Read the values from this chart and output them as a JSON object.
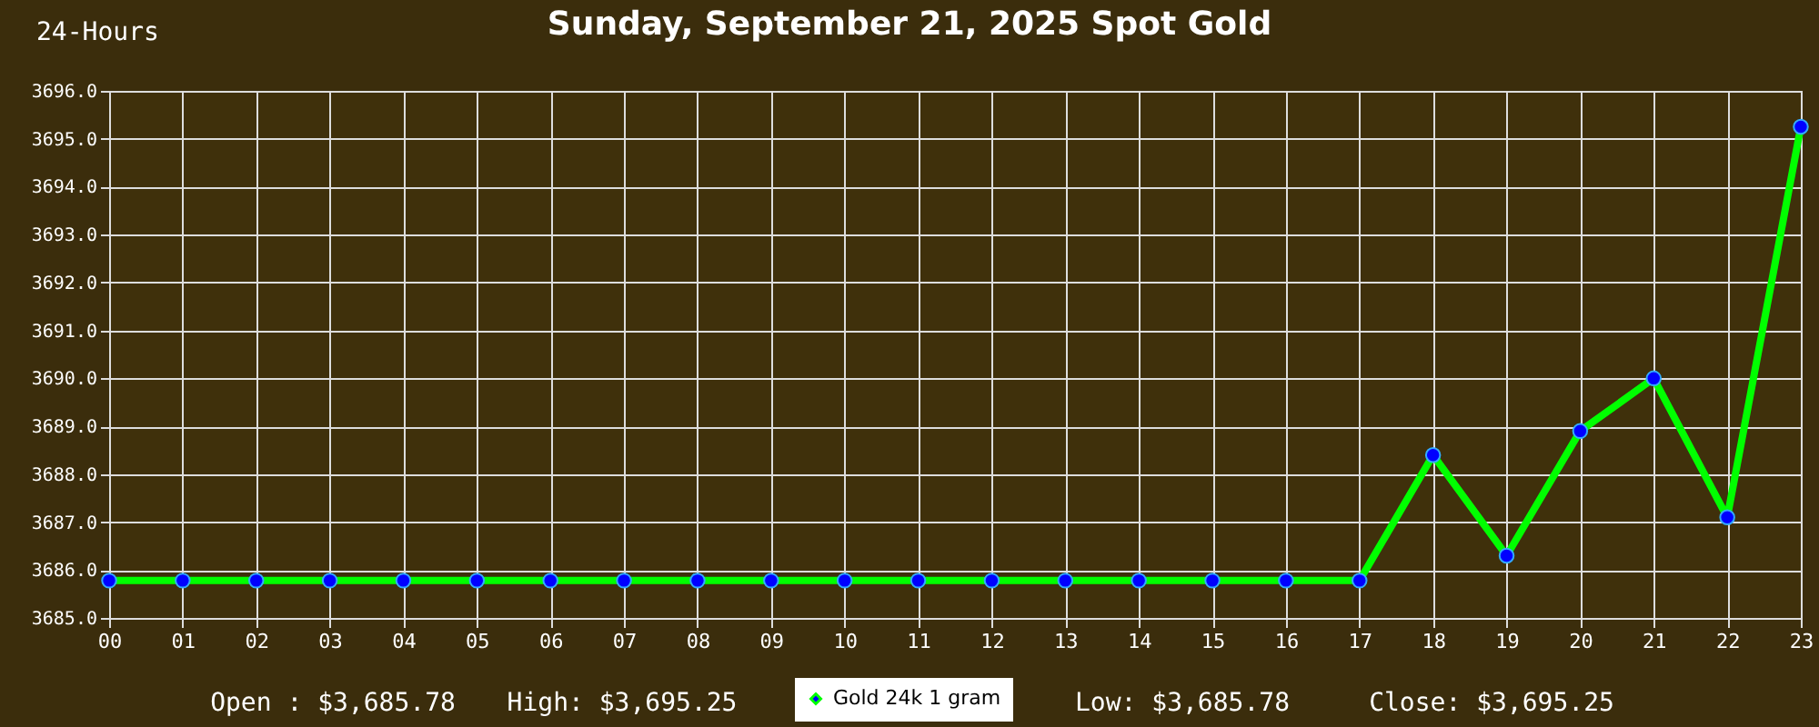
{
  "chart_data": {
    "type": "line",
    "title": "Sunday, September 21, 2025 Spot Gold",
    "subtitle": "24-Hours",
    "categories": [
      "00",
      "01",
      "02",
      "03",
      "04",
      "05",
      "06",
      "07",
      "08",
      "09",
      "10",
      "11",
      "12",
      "13",
      "14",
      "15",
      "16",
      "17",
      "18",
      "19",
      "20",
      "21",
      "22",
      "23"
    ],
    "series": [
      {
        "name": "Gold 24k 1 gram",
        "color": "#00ff00",
        "values": [
          3685.78,
          3685.78,
          3685.78,
          3685.78,
          3685.78,
          3685.78,
          3685.78,
          3685.78,
          3685.78,
          3685.78,
          3685.78,
          3685.78,
          3685.78,
          3685.78,
          3685.78,
          3685.78,
          3685.78,
          3685.78,
          3688.4,
          3686.3,
          3688.9,
          3690.0,
          3687.1,
          3695.25
        ]
      }
    ],
    "ylim": [
      3685,
      3696
    ],
    "yticks": [
      {
        "value": 3685,
        "label": "3685.0"
      },
      {
        "value": 3686,
        "label": "3686.0"
      },
      {
        "value": 3687,
        "label": "3687.0"
      },
      {
        "value": 3688,
        "label": "3688.0"
      },
      {
        "value": 3689,
        "label": "3689.0"
      },
      {
        "value": 3690,
        "label": "3690.0"
      },
      {
        "value": 3691,
        "label": "3691.0"
      },
      {
        "value": 3692,
        "label": "3692.0"
      },
      {
        "value": 3693,
        "label": "3693.0"
      },
      {
        "value": 3694,
        "label": "3694.0"
      },
      {
        "value": 3695,
        "label": "3695.0"
      },
      {
        "value": 3696,
        "label": "3696.0"
      }
    ],
    "grid": true,
    "legend": "bottom",
    "marker": "circle",
    "line_style": "solid",
    "annotations": [
      "Open : $3,685.78",
      "High: $3,695.25",
      "Low: $3,685.78",
      "Close: $3,695.25"
    ]
  }
}
